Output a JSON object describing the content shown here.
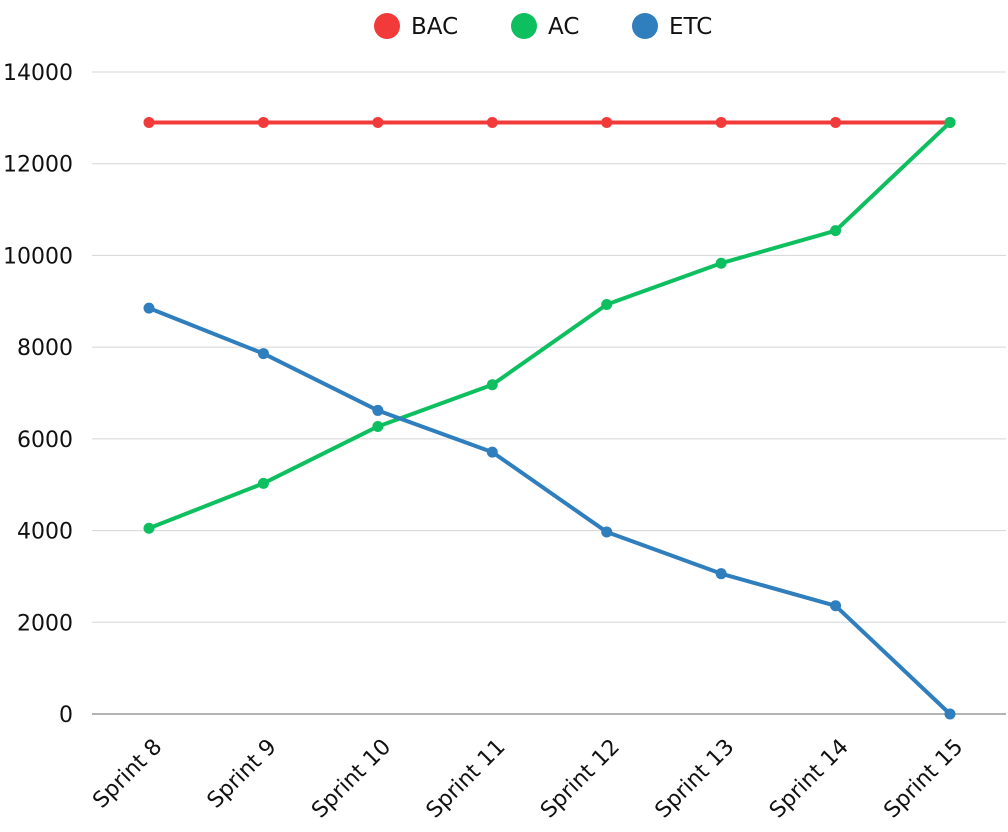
{
  "chart_data": {
    "type": "line",
    "title": "",
    "xlabel": "",
    "ylabel": "",
    "categories": [
      "Sprint 8",
      "Sprint 9",
      "Sprint 10",
      "Sprint 11",
      "Sprint 12",
      "Sprint 13",
      "Sprint 14",
      "Sprint 15"
    ],
    "ylim": [
      0,
      14000
    ],
    "yticks": [
      0,
      2000,
      4000,
      6000,
      8000,
      10000,
      12000,
      14000
    ],
    "grid": true,
    "legend_position": "top-center",
    "series": [
      {
        "name": "BAC",
        "color": "#f33a3a",
        "values": [
          12900,
          12900,
          12900,
          12900,
          12900,
          12900,
          12900,
          12900
        ]
      },
      {
        "name": "AC",
        "color": "#0dbf5f",
        "values": [
          4050,
          5030,
          6270,
          7180,
          8930,
          9830,
          10540,
          12900
        ]
      },
      {
        "name": "ETC",
        "color": "#2f7ebd",
        "values": [
          8850,
          7860,
          6620,
          5710,
          3970,
          3060,
          2360,
          0
        ]
      }
    ]
  }
}
